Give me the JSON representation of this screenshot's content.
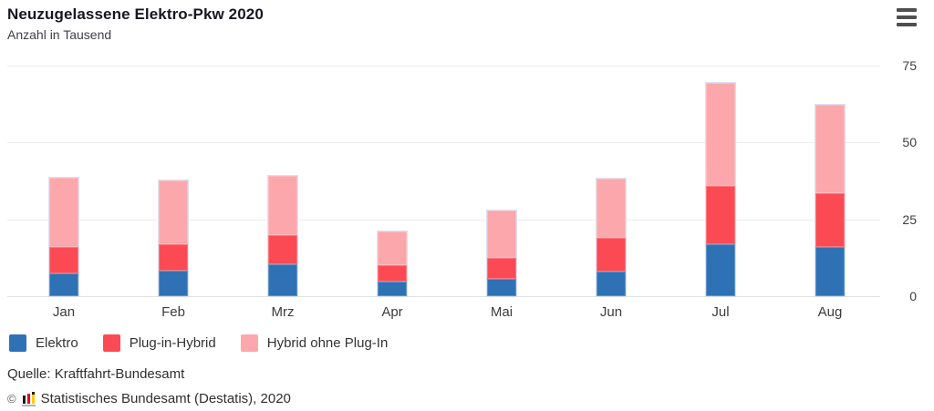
{
  "header": {
    "title": "Neuzugelassene Elektro-Pkw 2020",
    "subtitle": "Anzahl in Tausend",
    "menu_icon": "hamburger-icon"
  },
  "chart_data": {
    "type": "bar",
    "stacked": true,
    "title": "Neuzugelassene Elektro-Pkw 2020",
    "subtitle": "Anzahl in Tausend",
    "unit": "Tausend",
    "categories": [
      "Jan",
      "Feb",
      "Mrz",
      "Apr",
      "Mai",
      "Jun",
      "Jul",
      "Aug"
    ],
    "series": [
      {
        "name": "Elektro",
        "color": "#2e72b5",
        "values": [
          7.5,
          8.2,
          10.3,
          4.6,
          5.6,
          8.1,
          16.8,
          16.1
        ]
      },
      {
        "name": "Plug-in-Hybrid",
        "color": "#fb4a53",
        "values": [
          8.6,
          8.6,
          9.5,
          5.5,
          6.8,
          11.0,
          19.1,
          17.3
        ]
      },
      {
        "name": "Hybrid ohne Plug-In",
        "color": "#fba7ab",
        "values": [
          22.3,
          21.0,
          19.4,
          11.0,
          15.6,
          19.1,
          33.5,
          29.0
        ]
      }
    ],
    "y_ticks": [
      0,
      25,
      50,
      75
    ],
    "y_tick_labels": [
      "0",
      "25",
      "50",
      "75"
    ],
    "ylim": [
      0,
      75
    ],
    "grid": "horizontal",
    "axis_side": "right",
    "legend_position": "bottom"
  },
  "colors": {
    "elektro": "#2e72b5",
    "plug_in_hybrid": "#fb4a53",
    "hybrid_ohne_plug_in": "#fba7ab",
    "gridline": "#ededed",
    "logo_black": "#1d1d1b",
    "logo_red": "#e2001a",
    "logo_yellow": "#ffcc00"
  },
  "footer": {
    "source": "Quelle: Kraftfahrt-Bundesamt",
    "copyright_sign": "©",
    "copyright_text": "Statistisches Bundesamt (Destatis), 2020"
  }
}
